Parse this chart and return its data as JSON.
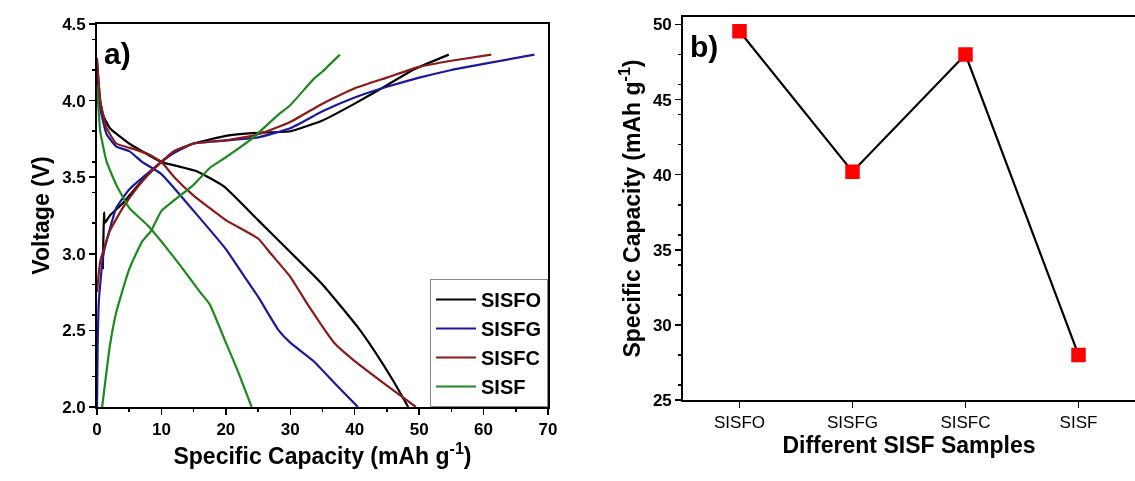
{
  "chart_data": [
    {
      "type": "line",
      "xlabel": "Specific Capacity (mAh g$^{-1}$)",
      "ylabel": "Voltage (V)",
      "annotations": [
        "a)"
      ],
      "xlim": [
        0,
        70
      ],
      "xticks": [
        0,
        10,
        20,
        30,
        40,
        50,
        60,
        70
      ],
      "ylim": [
        2,
        4.5
      ],
      "yticks": [
        {
          "value": 2,
          "label": "2.0"
        },
        {
          "value": 2.5,
          "label": "2.5"
        },
        {
          "value": 3,
          "label": "3.0"
        },
        {
          "value": 3.5,
          "label": "3.5"
        },
        {
          "value": 4,
          "label": "4.0"
        },
        {
          "value": 4.5,
          "label": "4.5"
        }
      ],
      "grid": false,
      "legend": "bottom right",
      "marker": "none",
      "line_style": "solid",
      "series": [
        {
          "name": "SISFO",
          "color": "#000000",
          "x": [
            0.9,
            1.1,
            1.2,
            2,
            4,
            6,
            8,
            10,
            12,
            15,
            20,
            25,
            30,
            35,
            40,
            45,
            49,
            54.6
          ],
          "values": [
            2.9,
            3.27,
            3.2,
            3.25,
            3.33,
            3.43,
            3.52,
            3.6,
            3.67,
            3.72,
            3.77,
            3.79,
            3.8,
            3.87,
            3.98,
            4.1,
            4.2,
            4.3
          ]
        },
        {
          "color": "#000000",
          "x": [
            0,
            0.5,
            1,
            2,
            5,
            10,
            15.4,
            19.7,
            25,
            29.8,
            35,
            40.5,
            43,
            46,
            48.3
          ],
          "values": [
            4.25,
            4.0,
            3.9,
            3.82,
            3.72,
            3.6,
            3.54,
            3.44,
            3.22,
            3.02,
            2.8,
            2.52,
            2.37,
            2.17,
            2.0
          ]
        },
        {
          "name": "SISFG",
          "color": "#1a1a9a",
          "x": [
            0,
            0.1,
            0.3,
            1,
            3,
            5,
            8,
            10,
            12,
            15,
            20,
            25,
            30,
            35,
            40,
            45,
            50,
            55,
            60,
            67.9
          ],
          "values": [
            2.0,
            2.4,
            2.7,
            3.0,
            3.3,
            3.42,
            3.53,
            3.6,
            3.66,
            3.72,
            3.74,
            3.76,
            3.82,
            3.93,
            4.02,
            4.09,
            4.15,
            4.2,
            4.24,
            4.3
          ]
        },
        {
          "color": "#1a1a9a",
          "x": [
            0,
            0.5,
            1.5,
            3,
            5,
            7,
            10,
            15,
            20,
            22.9,
            25,
            28.2,
            30,
            33.6,
            37,
            40.5
          ],
          "values": [
            4.2,
            3.95,
            3.78,
            3.7,
            3.67,
            3.6,
            3.52,
            3.28,
            3.03,
            2.85,
            2.72,
            2.5,
            2.42,
            2.3,
            2.15,
            2.0
          ]
        },
        {
          "name": "SISFC",
          "color": "#8b1a1a",
          "x": [
            0,
            0.5,
            2,
            4,
            6,
            8,
            10,
            12,
            15,
            20,
            25,
            30,
            35,
            40,
            45,
            50,
            55,
            61.2
          ],
          "values": [
            2.75,
            2.95,
            3.15,
            3.3,
            3.42,
            3.52,
            3.6,
            3.67,
            3.72,
            3.74,
            3.78,
            3.86,
            3.98,
            4.08,
            4.15,
            4.22,
            4.26,
            4.3
          ]
        },
        {
          "color": "#8b1a1a",
          "x": [
            0,
            0.5,
            1.5,
            3,
            6,
            8,
            10,
            12,
            15,
            20,
            25,
            27,
            30,
            33,
            36.8,
            40,
            45,
            49.5
          ],
          "values": [
            4.28,
            4.0,
            3.82,
            3.72,
            3.68,
            3.65,
            3.6,
            3.5,
            3.38,
            3.22,
            3.1,
            3.0,
            2.85,
            2.65,
            2.42,
            2.3,
            2.14,
            2.0
          ]
        },
        {
          "name": "SISF",
          "color": "#1e8a1e",
          "x": [
            0.8,
            2,
            3,
            5,
            7,
            8.4,
            10,
            12,
            15,
            17.5,
            20,
            24,
            28.2,
            30,
            33.6,
            35,
            37.7
          ],
          "values": [
            2.0,
            2.4,
            2.62,
            2.9,
            3.08,
            3.15,
            3.28,
            3.35,
            3.45,
            3.56,
            3.63,
            3.75,
            3.91,
            3.97,
            4.14,
            4.19,
            4.3
          ]
        },
        {
          "color": "#1e8a1e",
          "x": [
            0,
            0.5,
            1.5,
            3,
            5,
            8,
            10,
            13,
            16,
            17.5,
            20,
            22,
            24
          ],
          "values": [
            4.1,
            3.8,
            3.6,
            3.45,
            3.3,
            3.18,
            3.08,
            2.92,
            2.75,
            2.67,
            2.42,
            2.22,
            2.0
          ]
        }
      ]
    },
    {
      "type": "line",
      "xlabel": "Different SISF Samples",
      "ylabel": "Specific Capacity (mAh g$^{-1}$)",
      "annotations": [
        "b)"
      ],
      "categories": [
        "SISFO",
        "SISFG",
        "SISFC",
        "SISF"
      ],
      "ylim": [
        25,
        50.5
      ],
      "yticks": [
        25,
        30,
        35,
        40,
        45,
        50
      ],
      "grid": false,
      "legend": false,
      "marker": "square",
      "line_style": "solid",
      "series": [
        {
          "color": "#000000",
          "colors": [
            "#ff0000",
            "#ff0000",
            "#ff0000",
            "#ff0000"
          ],
          "values": [
            49.55,
            40.2,
            48.0,
            28.0
          ]
        }
      ]
    }
  ]
}
